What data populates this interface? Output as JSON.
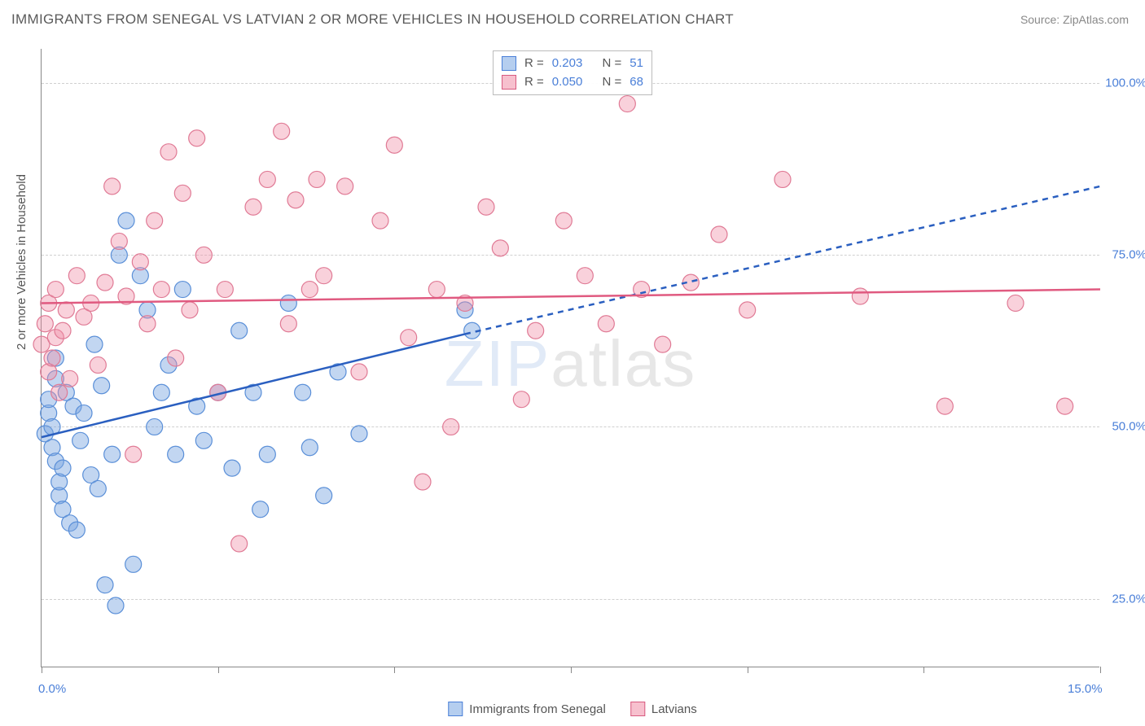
{
  "title": "IMMIGRANTS FROM SENEGAL VS LATVIAN 2 OR MORE VEHICLES IN HOUSEHOLD CORRELATION CHART",
  "source": "Source: ZipAtlas.com",
  "watermark_a": "ZIP",
  "watermark_b": "atlas",
  "chart": {
    "type": "scatter",
    "xlim": [
      0,
      15
    ],
    "ylim": [
      15,
      105
    ],
    "x_axis_title": "",
    "y_axis_title": "2 or more Vehicles in Household",
    "y_gridlines": [
      25,
      50,
      75,
      100
    ],
    "y_tick_labels": [
      "25.0%",
      "50.0%",
      "75.0%",
      "100.0%"
    ],
    "x_ticks": [
      0,
      2.5,
      5,
      7.5,
      10,
      12.5,
      15
    ],
    "x_tick_labels": {
      "0": "0.0%",
      "15": "15.0%"
    },
    "grid_color": "#d0d0d0",
    "background_color": "#ffffff",
    "label_fontsize": 15,
    "title_fontsize": 17,
    "marker_radius": 10,
    "series": [
      {
        "name": "Immigrants from Senegal",
        "color_fill": "rgba(120,165,225,0.45)",
        "color_stroke": "#5a8fd8",
        "R": "0.203",
        "N": "51",
        "trend_solid": {
          "x1": 0,
          "y1": 48.5,
          "x2": 6.0,
          "y2": 63.5
        },
        "trend_dash": {
          "x1": 6.0,
          "y1": 63.5,
          "x2": 15.0,
          "y2": 85.0
        },
        "trend_color": "#2a5fc0",
        "trend_width": 2.5,
        "points": [
          [
            0.05,
            49
          ],
          [
            0.1,
            52
          ],
          [
            0.1,
            54
          ],
          [
            0.15,
            47
          ],
          [
            0.15,
            50
          ],
          [
            0.2,
            45
          ],
          [
            0.2,
            57
          ],
          [
            0.2,
            60
          ],
          [
            0.25,
            40
          ],
          [
            0.25,
            42
          ],
          [
            0.3,
            38
          ],
          [
            0.3,
            44
          ],
          [
            0.35,
            55
          ],
          [
            0.4,
            36
          ],
          [
            0.45,
            53
          ],
          [
            0.5,
            35
          ],
          [
            0.55,
            48
          ],
          [
            0.6,
            52
          ],
          [
            0.7,
            43
          ],
          [
            0.75,
            62
          ],
          [
            0.8,
            41
          ],
          [
            0.85,
            56
          ],
          [
            0.9,
            27
          ],
          [
            1.0,
            46
          ],
          [
            1.05,
            24
          ],
          [
            1.1,
            75
          ],
          [
            1.2,
            80
          ],
          [
            1.3,
            30
          ],
          [
            1.4,
            72
          ],
          [
            1.5,
            67
          ],
          [
            1.6,
            50
          ],
          [
            1.7,
            55
          ],
          [
            1.8,
            59
          ],
          [
            1.9,
            46
          ],
          [
            2.0,
            70
          ],
          [
            2.2,
            53
          ],
          [
            2.3,
            48
          ],
          [
            2.5,
            55
          ],
          [
            2.7,
            44
          ],
          [
            2.8,
            64
          ],
          [
            3.0,
            55
          ],
          [
            3.1,
            38
          ],
          [
            3.2,
            46
          ],
          [
            3.5,
            68
          ],
          [
            3.7,
            55
          ],
          [
            3.8,
            47
          ],
          [
            4.0,
            40
          ],
          [
            4.2,
            58
          ],
          [
            4.5,
            49
          ],
          [
            6.0,
            67
          ],
          [
            6.1,
            64
          ]
        ]
      },
      {
        "name": "Latvians",
        "color_fill": "rgba(240,140,165,0.40)",
        "color_stroke": "#e07a95",
        "R": "0.050",
        "N": "68",
        "trend_solid": {
          "x1": 0,
          "y1": 68.0,
          "x2": 15.0,
          "y2": 70.0
        },
        "trend_dash": null,
        "trend_color": "#e05a80",
        "trend_width": 2.5,
        "points": [
          [
            0.0,
            62
          ],
          [
            0.05,
            65
          ],
          [
            0.1,
            58
          ],
          [
            0.1,
            68
          ],
          [
            0.15,
            60
          ],
          [
            0.2,
            63
          ],
          [
            0.2,
            70
          ],
          [
            0.25,
            55
          ],
          [
            0.3,
            64
          ],
          [
            0.35,
            67
          ],
          [
            0.4,
            57
          ],
          [
            0.5,
            72
          ],
          [
            0.6,
            66
          ],
          [
            0.7,
            68
          ],
          [
            0.8,
            59
          ],
          [
            0.9,
            71
          ],
          [
            1.0,
            85
          ],
          [
            1.1,
            77
          ],
          [
            1.2,
            69
          ],
          [
            1.3,
            46
          ],
          [
            1.4,
            74
          ],
          [
            1.5,
            65
          ],
          [
            1.6,
            80
          ],
          [
            1.7,
            70
          ],
          [
            1.8,
            90
          ],
          [
            1.9,
            60
          ],
          [
            2.0,
            84
          ],
          [
            2.1,
            67
          ],
          [
            2.2,
            92
          ],
          [
            2.3,
            75
          ],
          [
            2.5,
            55
          ],
          [
            2.6,
            70
          ],
          [
            2.8,
            33
          ],
          [
            3.0,
            82
          ],
          [
            3.2,
            86
          ],
          [
            3.4,
            93
          ],
          [
            3.5,
            65
          ],
          [
            3.6,
            83
          ],
          [
            3.8,
            70
          ],
          [
            3.9,
            86
          ],
          [
            4.0,
            72
          ],
          [
            4.3,
            85
          ],
          [
            4.5,
            58
          ],
          [
            4.8,
            80
          ],
          [
            5.0,
            91
          ],
          [
            5.2,
            63
          ],
          [
            5.4,
            42
          ],
          [
            5.6,
            70
          ],
          [
            5.8,
            50
          ],
          [
            6.0,
            68
          ],
          [
            6.3,
            82
          ],
          [
            6.5,
            76
          ],
          [
            6.8,
            54
          ],
          [
            7.0,
            64
          ],
          [
            7.4,
            80
          ],
          [
            7.7,
            72
          ],
          [
            8.0,
            65
          ],
          [
            8.3,
            97
          ],
          [
            8.5,
            70
          ],
          [
            8.8,
            62
          ],
          [
            9.2,
            71
          ],
          [
            9.6,
            78
          ],
          [
            10.0,
            67
          ],
          [
            10.5,
            86
          ],
          [
            11.6,
            69
          ],
          [
            12.8,
            53
          ],
          [
            13.8,
            68
          ],
          [
            14.5,
            53
          ]
        ]
      }
    ]
  },
  "legend_stats": {
    "r_label": "R  =",
    "n_label": "N  ="
  },
  "legend_bottom": [
    {
      "swatch": "sw-blue",
      "label": "Immigrants from Senegal"
    },
    {
      "swatch": "sw-pink",
      "label": "Latvians"
    }
  ]
}
